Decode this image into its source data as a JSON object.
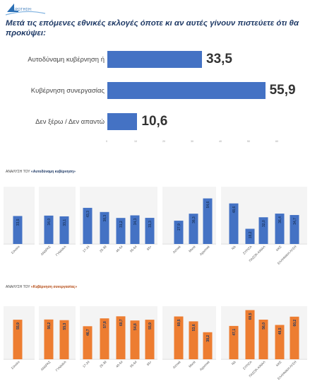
{
  "header": {
    "logo_text": "ΕΡΩΤΗΣΗ:",
    "question": "Μετά τις επόμενες εθνικές εκλογές όποτε κι αν αυτές γίνουν πιστεύετε ότι θα προκύψει:"
  },
  "colors": {
    "blue": "#4472c4",
    "orange": "#ed7d31"
  },
  "chart_data": [
    {
      "type": "bar",
      "orientation": "horizontal",
      "categories": [
        "Αυτοδύναμη κυβέρνηση ή",
        "Κυβέρνηση συνεργασίας",
        "Δεν ξέρω / Δεν απαντώ"
      ],
      "values": [
        33.5,
        55.9,
        10.6
      ],
      "value_labels": [
        "33,5",
        "55,9",
        "10,6"
      ],
      "xlim": [
        0,
        60
      ],
      "xticks": [
        "0",
        "10",
        "20",
        "30",
        "40",
        "50",
        "60"
      ],
      "color": "#4472c4"
    },
    {
      "type": "bar",
      "title_prefix": "ΑΝΑΛΥΣΗ ΤΟΥ ",
      "title_emph": "«Αυτοδύναμη κυβέρνηση»",
      "color": "#4472c4",
      "groups": [
        {
          "categories": [
            "Σύνολο"
          ],
          "values": [
            33.5
          ],
          "labels": [
            "33,5"
          ]
        },
        {
          "categories": [
            "ΑΝΔΡΑΣ",
            "ΓΥΝΑΙΚΑ"
          ],
          "values": [
            34.0,
            33.1
          ],
          "labels": [
            "34,0",
            "33,1"
          ]
        },
        {
          "categories": [
            "17-24",
            "25-39",
            "40-54",
            "55-64",
            "65+"
          ],
          "values": [
            43.3,
            38.3,
            31.2,
            34.3,
            31.3
          ],
          "labels": [
            "43,3",
            "38,3",
            "31,2",
            "34,3",
            "31,3"
          ]
        },
        {
          "categories": [
            "Αστικά",
            "Μικτά",
            "Αγροτικά"
          ],
          "values": [
            27.9,
            36.3,
            54.6
          ],
          "labels": [
            "27,9",
            "36,3",
            "54,6"
          ]
        },
        {
          "categories": [
            "ΝΔ",
            "ΣΥΡΙΖΑ",
            "ΠΑΣΟΚ-ΚΙΝΑΛ",
            "ΚΚΕ",
            "ΕΛΛΗΝΙΚΗ ΛΥΣΗ"
          ],
          "values": [
            48.6,
            18.2,
            32.0,
            36.4,
            34.7
          ],
          "labels": [
            "48,6",
            "18,2",
            "32,0",
            "36,4",
            "34,7"
          ]
        }
      ]
    },
    {
      "type": "bar",
      "title_prefix": "ΑΝΑΛΥΣΗ ΤΟΥ ",
      "title_emph": "«Κυβέρνηση συνεργασίας»",
      "color": "#ed7d31",
      "groups": [
        {
          "categories": [
            "Σύνολο"
          ],
          "values": [
            55.9
          ],
          "labels": [
            "55,9"
          ]
        },
        {
          "categories": [
            "ΑΝΔΡΑΣ",
            "ΓΥΝΑΙΚΑ"
          ],
          "values": [
            56.2,
            55.3
          ],
          "labels": [
            "56,2",
            "55,3"
          ]
        },
        {
          "categories": [
            "17-24",
            "25-39",
            "40-54",
            "55-64",
            "65+"
          ],
          "values": [
            46.7,
            57.8,
            60.7,
            54.8,
            55.9
          ],
          "labels": [
            "46,7",
            "57,8",
            "60,7",
            "54,8",
            "55,9"
          ]
        },
        {
          "categories": [
            "Αστικά",
            "Μικτά",
            "Αγροτικά"
          ],
          "values": [
            60.5,
            53.6,
            38.2
          ],
          "labels": [
            "60,5",
            "53,6",
            "38,2"
          ]
        },
        {
          "categories": [
            "ΝΔ",
            "ΣΥΡΙΖΑ",
            "ΠΑΣΟΚ-ΚΙΝΑΛ",
            "ΚΚΕ",
            "ΕΛΛΗΝΙΚΗ ΛΥΣΗ"
          ],
          "values": [
            47.1,
            69.5,
            56.0,
            48.5,
            60.2
          ],
          "labels": [
            "47,1",
            "69,5",
            "56,0",
            "48,5",
            "60,2"
          ]
        }
      ]
    }
  ]
}
